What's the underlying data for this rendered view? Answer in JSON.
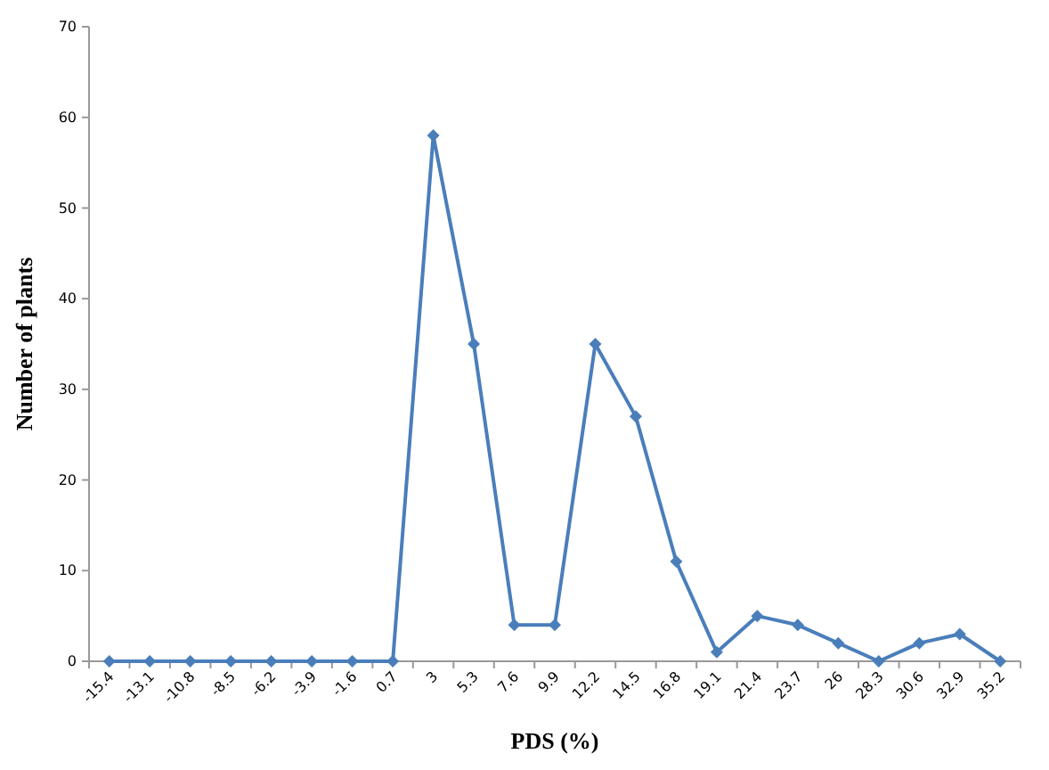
{
  "chart_data": {
    "type": "line",
    "xlabel": "PDS (%)",
    "ylabel": "Number of plants",
    "categories": [
      "-15.4",
      "-13.1",
      "-10.8",
      "-8.5",
      "-6.2",
      "-3.9",
      "-1.6",
      "0.7",
      "3",
      "5.3",
      "7.6",
      "9.9",
      "12.2",
      "14.5",
      "16.8",
      "19.1",
      "21.4",
      "23.7",
      "26",
      "28.3",
      "30.6",
      "32.9",
      "35.2"
    ],
    "series": [
      {
        "color": "#4a7ebb",
        "values": [
          0,
          0,
          0,
          0,
          0,
          0,
          0,
          0,
          58,
          35,
          4,
          4,
          35,
          27,
          11,
          1,
          5,
          4,
          2,
          0,
          2,
          3,
          0
        ]
      }
    ],
    "ylim": [
      0,
      70
    ],
    "yticks": [
      0,
      10,
      20,
      30,
      40,
      50,
      60,
      70
    ],
    "grid": false,
    "marker": "diamond",
    "line_style": "solid"
  }
}
